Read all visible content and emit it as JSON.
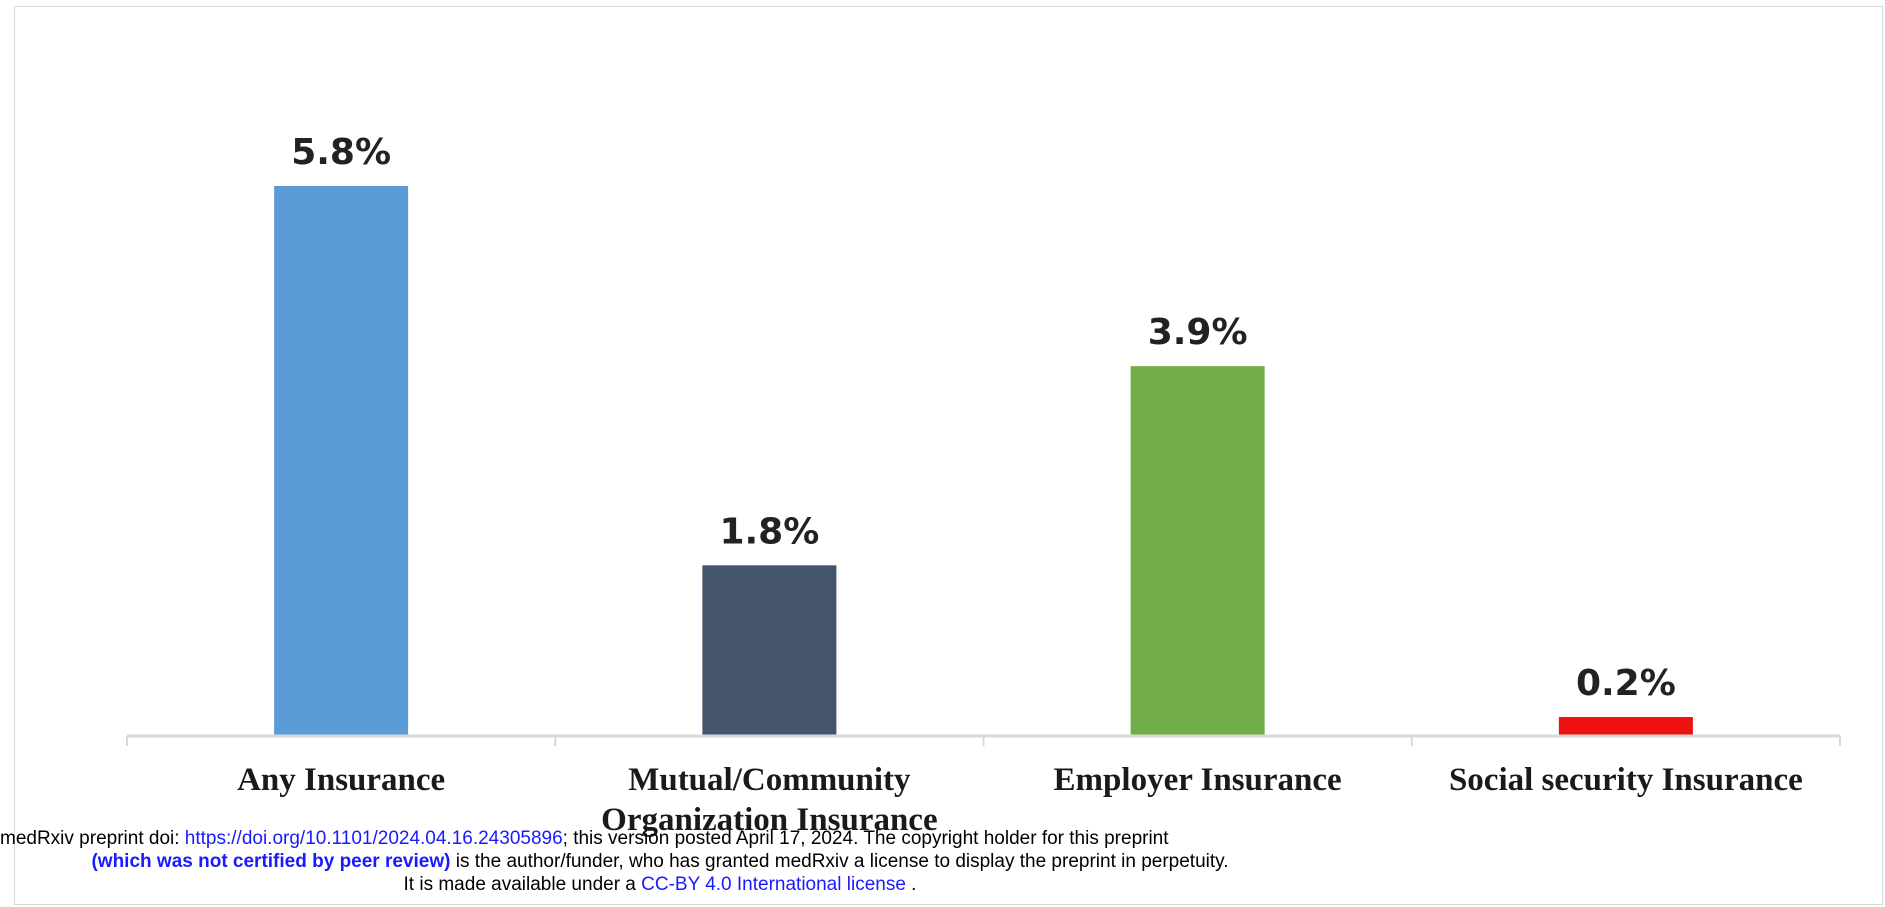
{
  "chart_data": {
    "type": "bar",
    "categories": [
      "Any Insurance",
      "Mutual/Community Organization Insurance",
      "Employer Insurance",
      "Social security Insurance"
    ],
    "category_lines": [
      [
        "Any Insurance"
      ],
      [
        "Mutual/Community",
        "Organization Insurance"
      ],
      [
        "Employer Insurance"
      ],
      [
        "Social security Insurance"
      ]
    ],
    "values": [
      5.8,
      1.8,
      3.9,
      0.2
    ],
    "data_labels": [
      "5.8%",
      "1.8%",
      "3.9%",
      "0.2%"
    ],
    "colors": [
      "#5b9bd5",
      "#44546a",
      "#70ad47",
      "#ee1111"
    ],
    "ylim": [
      0,
      5.8
    ],
    "title": "",
    "xlabel": "",
    "ylabel": "",
    "grid": false,
    "legend": "none"
  },
  "footer": {
    "line1_prefix": "medRxiv preprint doi: ",
    "doi_link": "https://doi.org/10.1101/2024.04.16.24305896",
    "line1_suffix": "; this version posted April 17, 2024. The copyright holder for this preprint",
    "line2_bold": "(which was not certified by peer review)",
    "line2_rest": " is the author/funder, who has granted medRxiv a license to display the preprint in perpetuity.",
    "line3_prefix": "It is made available under a ",
    "license_link": "CC-BY 4.0 International license",
    "line3_suffix": " ."
  }
}
